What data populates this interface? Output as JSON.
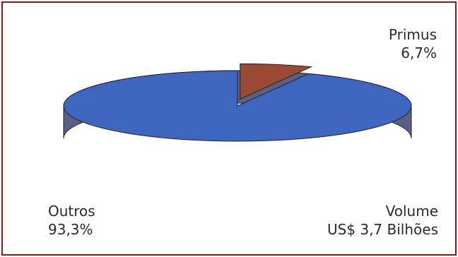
{
  "chart_data": {
    "type": "pie",
    "title": "",
    "slices": [
      {
        "name": "Primus",
        "label": "6,7%",
        "value": 6.7,
        "color": "#9a4a35",
        "exploded": true
      },
      {
        "name": "Outros",
        "label": "93,3%",
        "value": 93.3,
        "color": "#3f66bf",
        "exploded": false
      }
    ],
    "annotation": {
      "line1": "Volume",
      "line2": "US$ 3,7 Bilhões"
    },
    "side_color_main": "#5a5f86",
    "side_color_small": "#6a2e22",
    "border_color": "#7a1e14"
  }
}
